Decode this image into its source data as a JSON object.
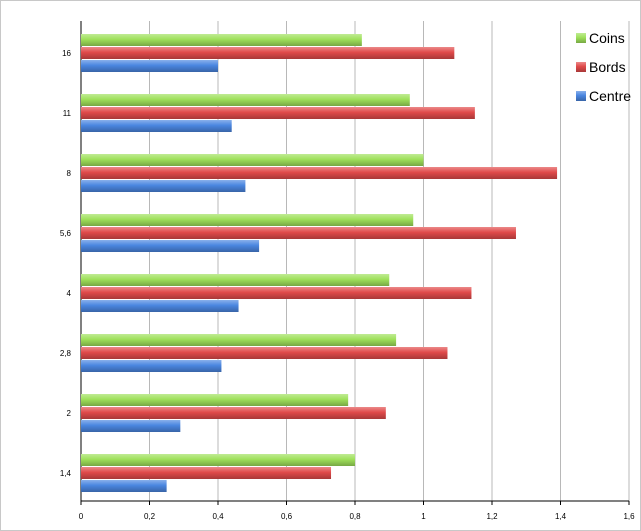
{
  "chart_data": {
    "type": "bar",
    "orientation": "horizontal",
    "categories": [
      "16",
      "11",
      "8",
      "5,6",
      "4",
      "2,8",
      "2",
      "1,4"
    ],
    "series": [
      {
        "name": "Coins",
        "color": "#9ee05a",
        "values": [
          0.82,
          0.96,
          1.0,
          0.97,
          0.9,
          0.92,
          0.78,
          0.8
        ]
      },
      {
        "name": "Bords",
        "color": "#e04a4a",
        "values": [
          1.09,
          1.15,
          1.39,
          1.27,
          1.14,
          1.07,
          0.89,
          0.73
        ]
      },
      {
        "name": "Centre",
        "color": "#4a86e0",
        "values": [
          0.4,
          0.44,
          0.48,
          0.52,
          0.46,
          0.41,
          0.29,
          0.25
        ]
      }
    ],
    "xlim": [
      0,
      1.6
    ],
    "xticks": [
      "0",
      "0,2",
      "0,4",
      "0,6",
      "0,8",
      "1",
      "1,2",
      "1,4",
      "1,6"
    ],
    "grid": "vertical",
    "legend_position": "top-right",
    "title": "",
    "xlabel": "",
    "ylabel": ""
  }
}
